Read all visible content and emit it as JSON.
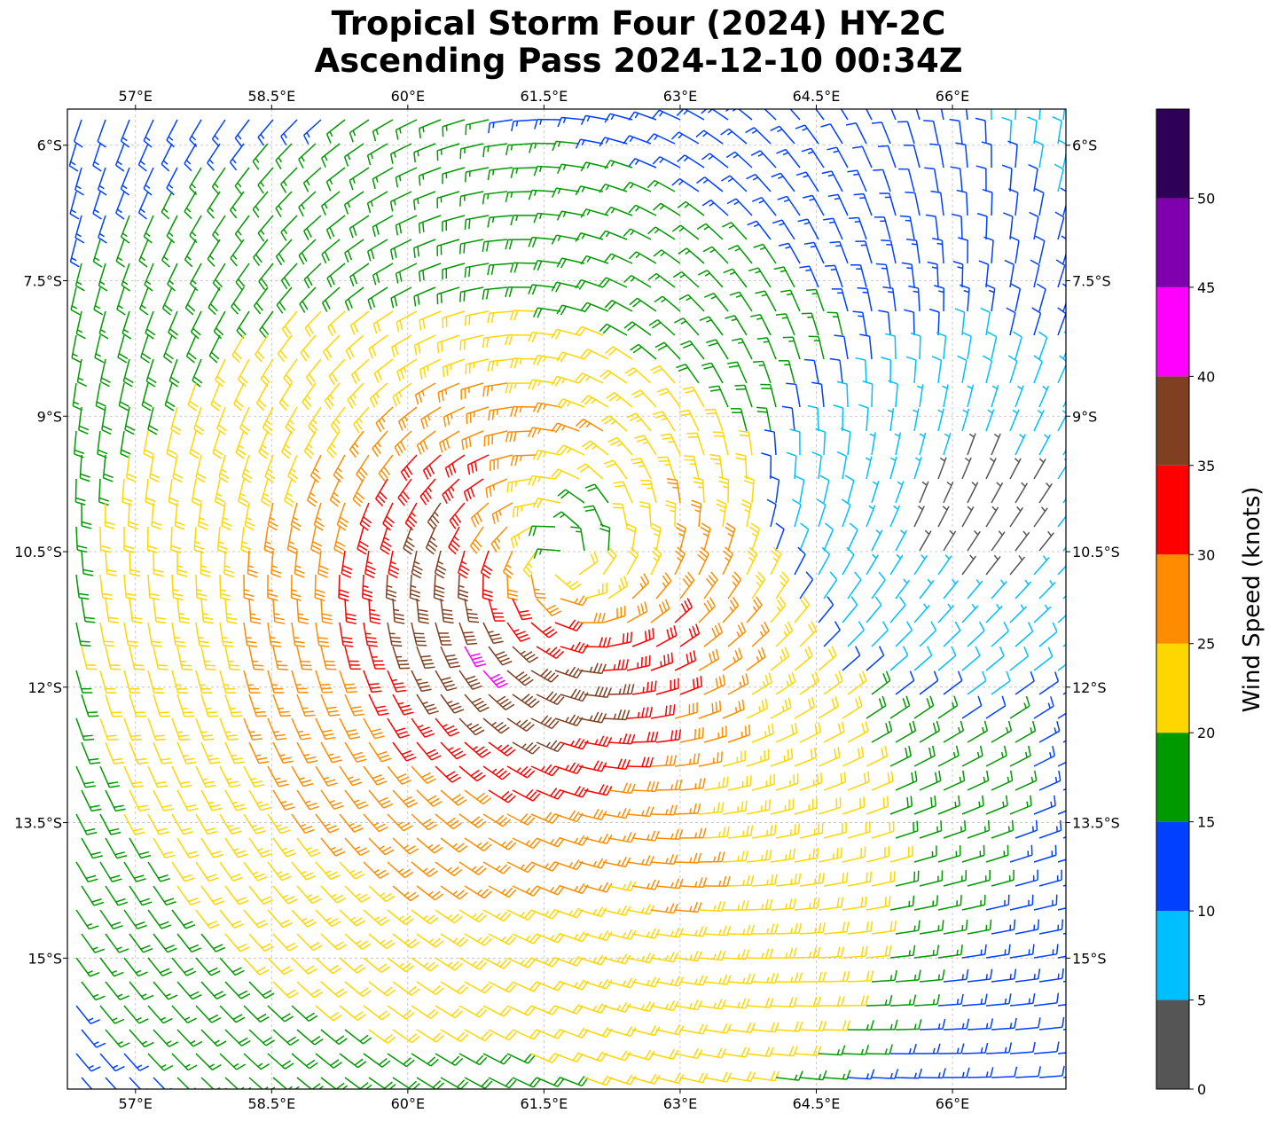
{
  "chart_data": {
    "type": "wind_barbs",
    "title": "Tropical Storm Four (2024) HY-2C",
    "subtitle": "Ascending Pass 2024-12-10 00:34Z",
    "x_ticks": [
      "57°E",
      "58.5°E",
      "60°E",
      "61.5°E",
      "63°E",
      "64.5°E",
      "66°E"
    ],
    "y_ticks": [
      "6°S",
      "7.5°S",
      "9°S",
      "10.5°S",
      "12°S",
      "13.5°S",
      "15°S"
    ],
    "xlim": [
      56.25,
      67.25
    ],
    "ylim": [
      -16.45,
      -5.6
    ],
    "grid": true,
    "storm_center": {
      "lon": 61.7,
      "lat": -10.6
    },
    "colorbar": {
      "label": "Wind Speed (knots)",
      "ticks": [
        "0",
        "5",
        "10",
        "15",
        "20",
        "25",
        "30",
        "35",
        "40",
        "45",
        "50"
      ],
      "bins": [
        {
          "min": 0,
          "max": 5,
          "color": "#555555"
        },
        {
          "min": 5,
          "max": 10,
          "color": "#00bfff"
        },
        {
          "min": 10,
          "max": 15,
          "color": "#0040ff"
        },
        {
          "min": 15,
          "max": 20,
          "color": "#009900"
        },
        {
          "min": 20,
          "max": 25,
          "color": "#ffd700"
        },
        {
          "min": 25,
          "max": 30,
          "color": "#ff8c00"
        },
        {
          "min": 30,
          "max": 35,
          "color": "#ff0000"
        },
        {
          "min": 35,
          "max": 40,
          "color": "#7f3f20"
        },
        {
          "min": 40,
          "max": 45,
          "color": "#ff00ff"
        },
        {
          "min": 45,
          "max": 50,
          "color": "#8000b0"
        },
        {
          "min": 50,
          "max": 55,
          "color": "#2e0057"
        }
      ]
    }
  }
}
